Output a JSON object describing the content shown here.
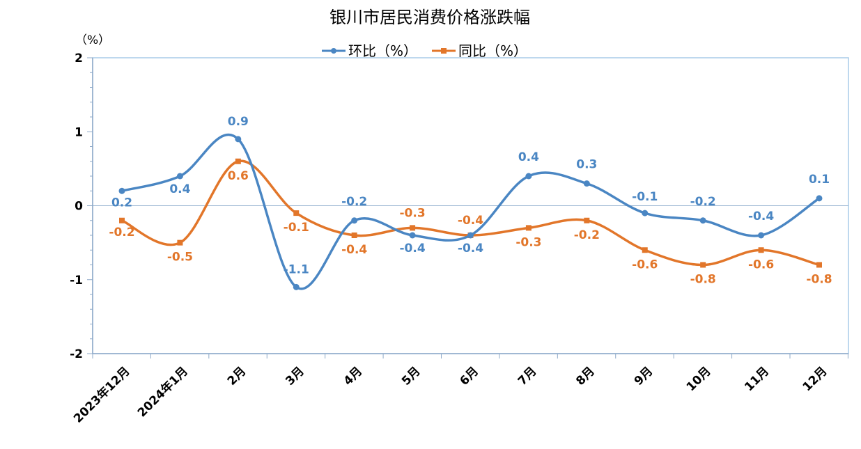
{
  "chart_data": {
    "type": "line",
    "title": "银川市居民消费价格涨跌幅",
    "y_unit": "（%）",
    "categories": [
      "2023年12月",
      "2024年1月",
      "2月",
      "3月",
      "4月",
      "5月",
      "6月",
      "7月",
      "8月",
      "9月",
      "10月",
      "11月",
      "12月"
    ],
    "ylim": [
      -2,
      2
    ],
    "yticks": [
      2,
      1,
      0,
      -1,
      -2
    ],
    "ytick_labels": [
      "2",
      "1",
      "0",
      "-1",
      "-2"
    ],
    "grid": false,
    "legend_position": "top-center",
    "series": [
      {
        "name": "环比（%）",
        "color": "#4A86C3",
        "marker": "circle",
        "values": [
          0.2,
          0.4,
          0.9,
          -1.1,
          -0.2,
          -0.4,
          -0.4,
          0.4,
          0.3,
          -0.1,
          -0.2,
          -0.4,
          0.1
        ],
        "labels": [
          "0.2",
          "0.4",
          "0.9",
          "-1.1",
          "-0.2",
          "-0.4",
          "-0.4",
          "0.4",
          "0.3",
          "-0.1",
          "-0.2",
          "-0.4",
          "0.1"
        ]
      },
      {
        "name": "同比（%）",
        "color": "#E2762A",
        "marker": "square",
        "values": [
          -0.2,
          -0.5,
          0.6,
          -0.1,
          -0.4,
          -0.3,
          -0.4,
          -0.3,
          -0.2,
          -0.6,
          -0.8,
          -0.6,
          -0.8
        ],
        "labels": [
          "-0.2",
          "-0.5",
          "0.6",
          "-0.1",
          "-0.4",
          "-0.3",
          "-0.4",
          "-0.3",
          "-0.2",
          "-0.6",
          "-0.8",
          "-0.6",
          "-0.8"
        ]
      }
    ]
  },
  "colors": {
    "axis": "#8EA9C8",
    "plot_border": "#A9CBE8",
    "zero_line": "#9CB7D3"
  }
}
